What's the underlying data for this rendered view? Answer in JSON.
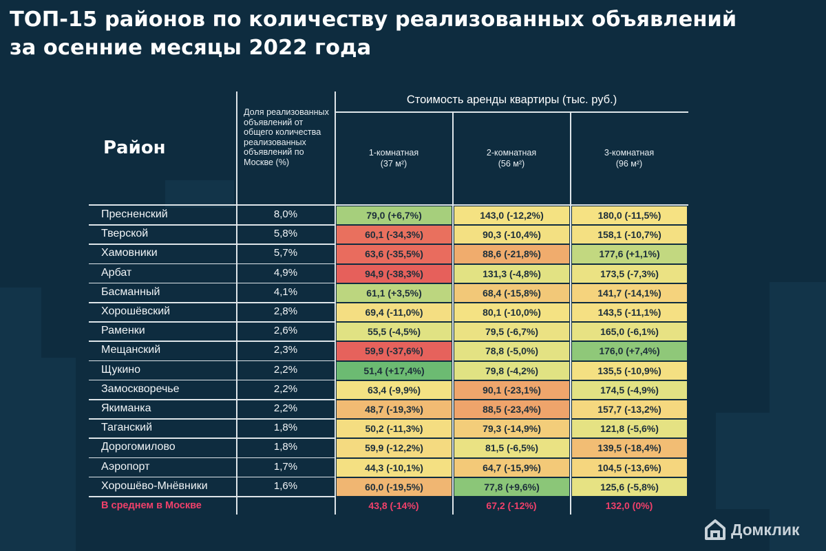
{
  "title": {
    "line1": "ТОП-15 районов по количеству реализованных объявлений",
    "line2": "за осенние месяцы 2022 года"
  },
  "header": {
    "district": "Район",
    "share": "Доля реализованных объявлений от общего количества реализованных объявлений по Москве (%)",
    "rent_group": "Стоимость аренды квартиры (тыс. руб.)",
    "col1_name": "1-комнатная",
    "col1_area": "(37 м²)",
    "col2_name": "2-комнатная",
    "col2_area": "(56 м²)",
    "col3_name": "3-комнатная",
    "col3_area": "(96 м²)"
  },
  "colors": {
    "background": "#0e2c3f",
    "average_text": "#f0406a",
    "scale": [
      "#e7605c",
      "#ef9a68",
      "#f4c377",
      "#f7e283",
      "#d7e283",
      "#9ccb7b",
      "#6cbb72"
    ]
  },
  "chart_data": {
    "type": "table",
    "title": "ТОП-15 районов по количеству реализованных объявлений за осенние месяцы 2022 года",
    "columns": [
      "Район",
      "Доля реализованных объявлений от общего количества реализованных объявлений по Москве (%)",
      "1-комнатная (37 м²)",
      "2-комнатная (56 м²)",
      "3-комнатная (96 м²)"
    ],
    "rows": [
      {
        "district": "Пресненский",
        "share": "8,0%",
        "r1": "79,0 (+6,7%)",
        "r2": "143,0 (-12,2%)",
        "r3": "180,0 (-11,5%)",
        "c1": "#a6cf7c",
        "c2": "#f4e282",
        "c3": "#f6e283"
      },
      {
        "district": "Тверской",
        "share": "5,8%",
        "r1": "60,1 (-34,3%)",
        "r2": "90,3 (-10,4%)",
        "r3": "158,1 (-10,7%)",
        "c1": "#e9705e",
        "c2": "#f3e082",
        "c3": "#f4e082"
      },
      {
        "district": "Хамовники",
        "share": "5,7%",
        "r1": "63,6 (-35,5%)",
        "r2": "88,6 (-21,8%)",
        "r3": "177,6 (+1,1%)",
        "c1": "#e96c5e",
        "c2": "#f0ac6d",
        "c3": "#c2d880"
      },
      {
        "district": "Арбат",
        "share": "4,9%",
        "r1": "94,9 (-38,3%)",
        "r2": "131,3 (-4,8%)",
        "r3": "173,5 (-7,3%)",
        "c1": "#e6605b",
        "c2": "#e2e283",
        "c3": "#ebe283"
      },
      {
        "district": "Басманный",
        "share": "4,1%",
        "r1": "61,1 (+3,5%)",
        "r2": "68,4 (-15,8%)",
        "r3": "141,7 (-14,1%)",
        "c1": "#bcd67f",
        "c2": "#f2c878",
        "c3": "#f5d37d"
      },
      {
        "district": "Хорошёвский",
        "share": "2,8%",
        "r1": "69,4 (-11,0%)",
        "r2": "80,1 (-10,0%)",
        "r3": "143,5 (-11,1%)",
        "c1": "#f4de82",
        "c2": "#f4e283",
        "c3": "#f5e083"
      },
      {
        "district": "Раменки",
        "share": "2,6%",
        "r1": "55,5 (-4,5%)",
        "r2": "79,5 (-6,7%)",
        "r3": "165,0 (-6,1%)",
        "c1": "#e0e283",
        "c2": "#ebe283",
        "c3": "#e7e283"
      },
      {
        "district": "Мещанский",
        "share": "2,3%",
        "r1": "59,9 (-37,6%)",
        "r2": "78,8 (-5,0%)",
        "r3": "176,0 (+7,4%)",
        "c1": "#e6625c",
        "c2": "#e3e283",
        "c3": "#8fc879"
      },
      {
        "district": "Щукино",
        "share": "2,2%",
        "r1": "51,4 (+17,4%)",
        "r2": "79,8 (-4,2%)",
        "r3": "135,5 (-10,9%)",
        "c1": "#6cbb72",
        "c2": "#e0e283",
        "c3": "#f4e082"
      },
      {
        "district": "Замоскворечье",
        "share": "2,2%",
        "r1": "63,4 (-9,9%)",
        "r2": "90,1 (-23,1%)",
        "r3": "174,5 (-4,9%)",
        "c1": "#f3e283",
        "c2": "#efa66c",
        "c3": "#e2e283"
      },
      {
        "district": "Якиманка",
        "share": "2,2%",
        "r1": "48,7 (-19,3%)",
        "r2": "88,5 (-23,4%)",
        "r3": "157,7 (-13,2%)",
        "c1": "#f1bb73",
        "c2": "#efa46b",
        "c3": "#f5d87f"
      },
      {
        "district": "Таганский",
        "share": "1,8%",
        "r1": "50,2 (-11,3%)",
        "r2": "79,3 (-14,9%)",
        "r3": "121,8 (-5,6%)",
        "c1": "#f4dd81",
        "c2": "#f3cd7a",
        "c3": "#e5e283"
      },
      {
        "district": "Дорогомилово",
        "share": "1,8%",
        "r1": "59,9 (-12,2%)",
        "r2": "81,5 (-6,5%)",
        "r3": "139,5 (-18,4%)",
        "c1": "#f4da80",
        "c2": "#eae283",
        "c3": "#f2bd74"
      },
      {
        "district": "Аэропорт",
        "share": "1,7%",
        "r1": "44,3 (-10,1%)",
        "r2": "64,7 (-15,9%)",
        "r3": "104,5 (-13,6%)",
        "c1": "#f4e082",
        "c2": "#f3c978",
        "c3": "#f5d67e"
      },
      {
        "district": "Хорошёво-Мнёвники",
        "share": "1,6%",
        "r1": "60,0 (-19,5%)",
        "r2": "77,8 (+9,6%)",
        "r3": "125,6 (-5,8%)",
        "c1": "#f0b672",
        "c2": "#8bc678",
        "c3": "#e6e283"
      }
    ],
    "average": {
      "label": "В среднем в Москве",
      "r1": "43,8 (-14%)",
      "r2": "67,2 (-12%)",
      "r3": "132,0 (0%)"
    }
  },
  "logo": {
    "text": "Домклик",
    "icon": "house-icon"
  }
}
